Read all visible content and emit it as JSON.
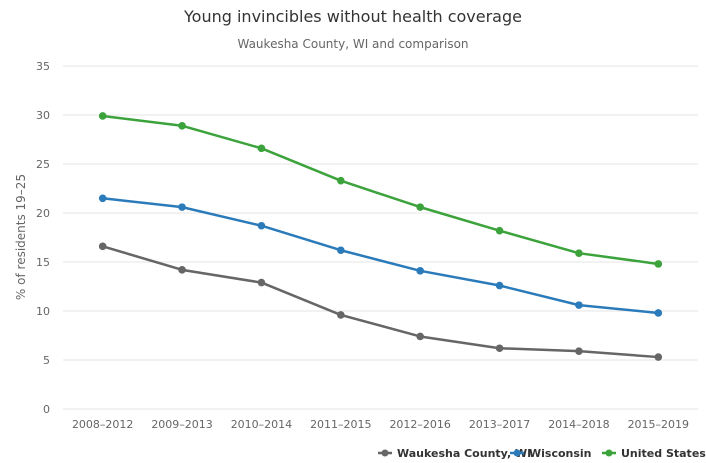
{
  "chart_data": {
    "type": "line",
    "title": "Young invincibles without health coverage",
    "subtitle": "Waukesha County, WI and comparison",
    "xlabel": "",
    "ylabel": "% of residents 19–25",
    "ylim": [
      0,
      35
    ],
    "yticks": [
      0,
      5,
      10,
      15,
      20,
      25,
      30,
      35
    ],
    "grid": true,
    "legend_position": "bottom-right",
    "categories": [
      "2008–2012",
      "2009–2013",
      "2010–2014",
      "2011–2015",
      "2012–2016",
      "2013–2017",
      "2014–2018",
      "2015–2019"
    ],
    "series": [
      {
        "name": "Waukesha County, WI",
        "color": "#666666",
        "values": [
          16.6,
          14.2,
          12.9,
          9.6,
          7.4,
          6.2,
          5.9,
          5.3
        ]
      },
      {
        "name": "Wisconsin",
        "color": "#2b7bba",
        "values": [
          21.5,
          20.6,
          18.7,
          16.2,
          14.1,
          12.6,
          10.6,
          9.8
        ]
      },
      {
        "name": "United States",
        "color": "#3ca33c",
        "values": [
          29.9,
          28.9,
          26.6,
          23.3,
          20.6,
          18.2,
          15.9,
          14.8
        ]
      }
    ]
  }
}
